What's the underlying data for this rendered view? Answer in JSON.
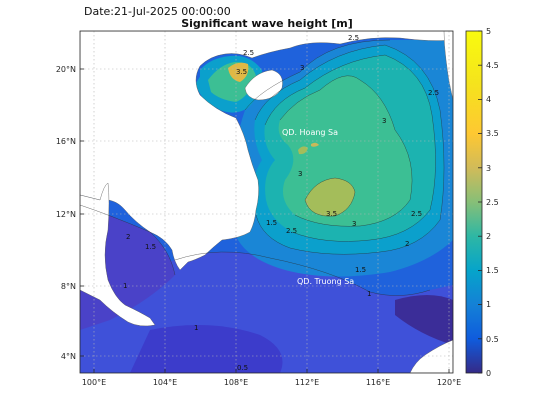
{
  "header": {
    "date_text": "Date:21-Jul-2025 00:00:00",
    "title": "Significant wave height [m]"
  },
  "map": {
    "lon_range": [
      99.3,
      120.4
    ],
    "lat_range": [
      3.0,
      22.1
    ],
    "x_ticks": [
      "100°E",
      "104°E",
      "108°E",
      "112°E",
      "116°E",
      "120°E"
    ],
    "y_ticks": [
      "20°N",
      "16°N",
      "12°N",
      "8°N",
      "4°N"
    ],
    "labels": [
      "QD. Hoang Sa",
      "QD. Truong Sa"
    ],
    "contour_labels": [
      "2.5",
      "3",
      "2.5",
      "3",
      "3.5",
      "3",
      "2.5",
      "2",
      "1.5",
      "1",
      "0.5",
      "1.5",
      "2",
      "1",
      "2.5",
      "3.5",
      "3",
      "2.5",
      "1.5",
      "1"
    ],
    "land_color": "#ffffff",
    "grid": true
  },
  "colorbar": {
    "ticks": [
      "5",
      "4.5",
      "4",
      "3.5",
      "3",
      "2.5",
      "2",
      "1.5",
      "1",
      "0.5",
      "0"
    ],
    "range": [
      0,
      5
    ],
    "colormap": "parula"
  }
}
